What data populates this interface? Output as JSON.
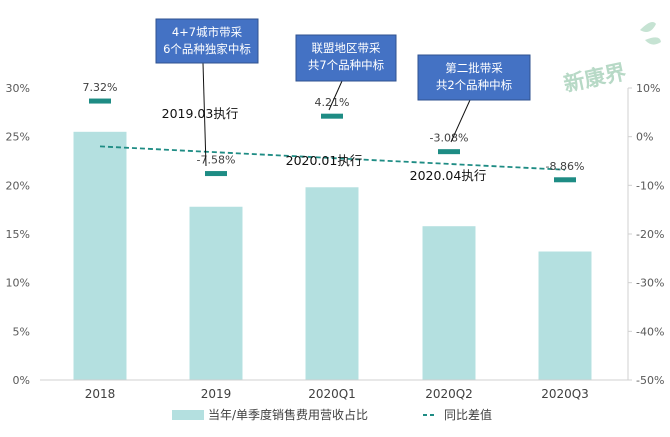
{
  "chart_data": {
    "type": "bar",
    "categories": [
      "2018",
      "2019",
      "2020Q1",
      "2020Q2",
      "2020Q3"
    ],
    "series": [
      {
        "name": "当年/单季度销售费用营收占比",
        "type": "bar",
        "axis": "left",
        "color": "#b4e0e0",
        "values": [
          25.5,
          17.8,
          19.8,
          15.8,
          13.2
        ]
      },
      {
        "name": "同比差值",
        "type": "marker",
        "axis": "right",
        "color": "#1e8c84",
        "values": [
          7.32,
          -7.58,
          4.21,
          -3.08,
          -8.86
        ],
        "labels": [
          "7.32%",
          "-7.58%",
          "4.21%",
          "-3.08%",
          "-8.86%"
        ]
      }
    ],
    "trendline": {
      "style": "dashed",
      "color": "#1e8c84",
      "y_start": 24.0,
      "y_end": 21.6
    },
    "left_axis": {
      "range": [
        0,
        30
      ],
      "ticks": [
        "0%",
        "5%",
        "10%",
        "15%",
        "20%",
        "25%",
        "30%"
      ]
    },
    "right_axis": {
      "range": [
        -50,
        10
      ],
      "ticks": [
        "-50%",
        "-40%",
        "-30%",
        "-20%",
        "-10%",
        "0%",
        "10%"
      ]
    },
    "annotations": [
      {
        "text": "2019.03执行",
        "category": "2019"
      },
      {
        "text": "2020.01执行",
        "category": "2020Q1"
      },
      {
        "text": "2020.04执行",
        "category": "2020Q2"
      }
    ],
    "callouts": [
      {
        "lines": [
          "4+7城市带采",
          "6个品种独家中标"
        ],
        "category": "2019"
      },
      {
        "lines": [
          "联盟地区带采",
          "共7个品种中标"
        ],
        "category": "2020Q1"
      },
      {
        "lines": [
          "第二批带采",
          "共2个品种中标"
        ],
        "category": "2020Q2"
      }
    ],
    "legend": {
      "position": "bottom"
    },
    "grid": false
  },
  "watermark": {
    "text": "新康界"
  },
  "colors": {
    "bar": "#b4e0e0",
    "accent": "#1e8c84",
    "callout_fill": "#4472c4",
    "callout_border": "#2f528f"
  }
}
